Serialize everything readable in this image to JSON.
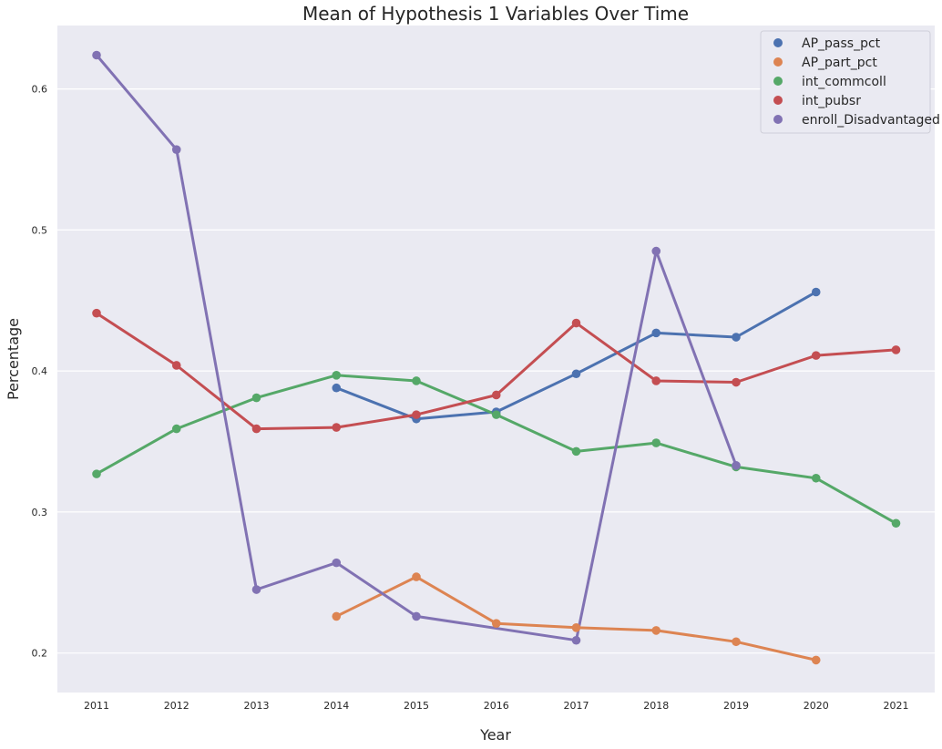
{
  "chart_data": {
    "type": "line",
    "title": "Mean of Hypothesis 1 Variables Over Time",
    "xlabel": "Year",
    "ylabel": "Percentage",
    "categories": [
      "2011",
      "2012",
      "2013",
      "2014",
      "2015",
      "2016",
      "2017",
      "2018",
      "2019",
      "2020",
      "2021"
    ],
    "yticks": [
      "0.2",
      "0.3",
      "0.4",
      "0.5",
      "0.6"
    ],
    "ylim": [
      0.172,
      0.645
    ],
    "grid": true,
    "legend_position": "top-right",
    "background": "#eaeaf2",
    "series": [
      {
        "name": "AP_pass_pct",
        "color": "#4c72b0",
        "values": [
          null,
          null,
          null,
          0.388,
          0.366,
          0.371,
          0.398,
          0.427,
          0.424,
          0.456,
          null
        ]
      },
      {
        "name": "AP_part_pct",
        "color": "#dd8452",
        "values": [
          null,
          null,
          null,
          0.226,
          0.254,
          0.221,
          0.218,
          0.216,
          0.208,
          0.195,
          null
        ]
      },
      {
        "name": "int_commcoll",
        "color": "#55a868",
        "values": [
          0.327,
          0.359,
          0.381,
          0.397,
          0.393,
          0.369,
          0.343,
          0.349,
          0.332,
          0.324,
          0.292
        ]
      },
      {
        "name": "int_pubsr",
        "color": "#c44e52",
        "values": [
          0.441,
          0.404,
          0.359,
          0.36,
          0.369,
          0.383,
          0.434,
          0.393,
          0.392,
          0.411,
          0.415
        ]
      },
      {
        "name": "enroll_Disadvantaged",
        "color": "#8172b3",
        "values": [
          0.624,
          0.557,
          0.245,
          0.264,
          0.226,
          null,
          0.209,
          0.485,
          0.333,
          null,
          null
        ]
      }
    ]
  }
}
